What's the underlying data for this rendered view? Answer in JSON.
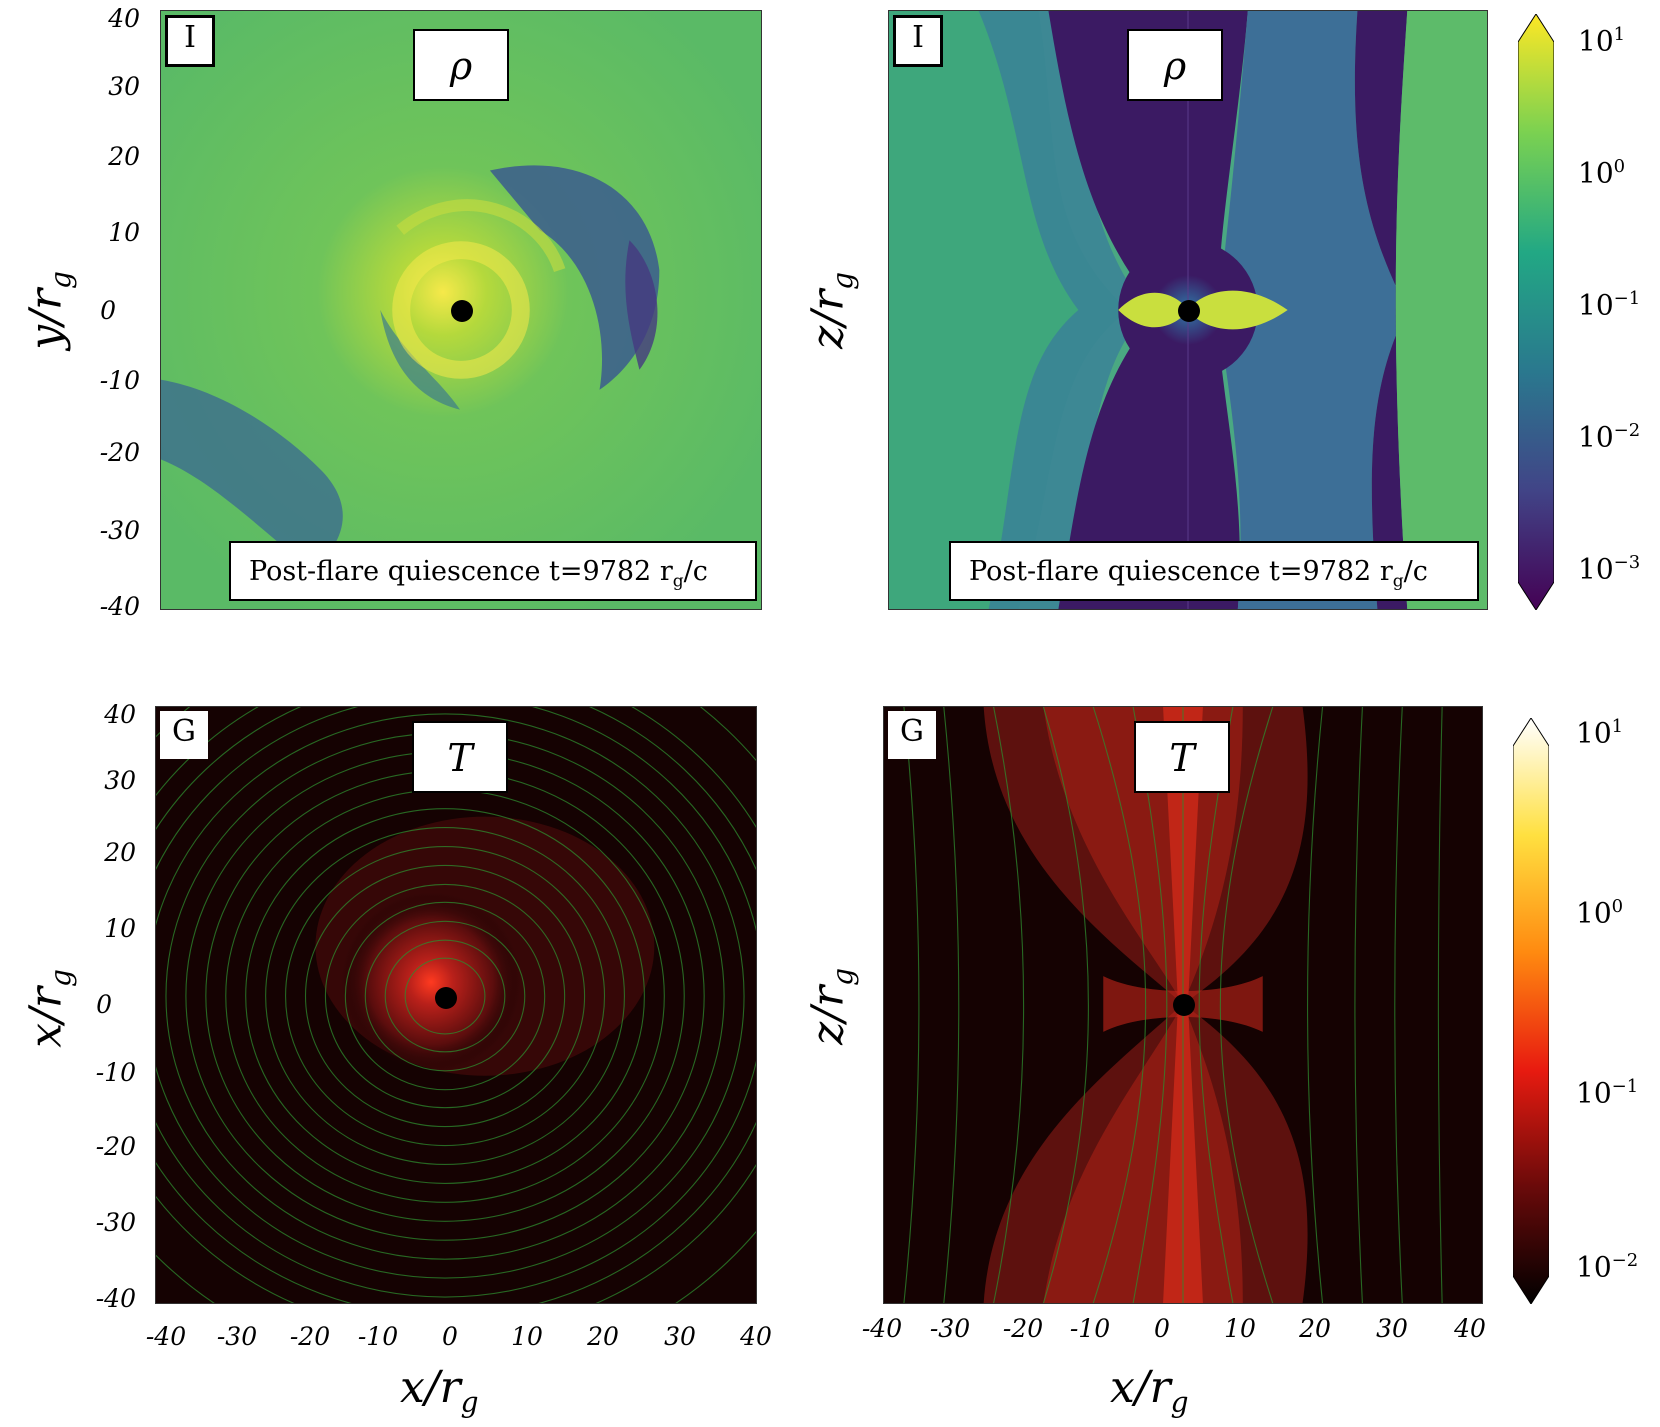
{
  "panels": {
    "top_left": {
      "tag": "I",
      "quantity": "ρ",
      "time_label": "Post-flare quiescence t=9782 r",
      "time_sub": "g",
      "time_suffix": "/c"
    },
    "top_right": {
      "tag": "I",
      "quantity": "ρ",
      "time_label": "Post-flare quiescence t=9782 r",
      "time_sub": "g",
      "time_suffix": "/c"
    },
    "bot_left": {
      "tag": "G",
      "quantity": "T"
    },
    "bot_right": {
      "tag": "G",
      "quantity": "T"
    }
  },
  "axes": {
    "top_left_ylabel": {
      "main": "y/r",
      "sub": "g"
    },
    "top_right_ylabel": {
      "main": "z/r",
      "sub": "g"
    },
    "bot_left_ylabel": {
      "main": "x/r",
      "sub": "g"
    },
    "bot_right_ylabel": {
      "main": "z/r",
      "sub": "g"
    },
    "bot_left_xlabel": {
      "main": "x/r",
      "sub": "g"
    },
    "bot_right_xlabel": {
      "main": "x/r",
      "sub": "g"
    }
  },
  "colorbars": {
    "density": {
      "colormap": "viridis",
      "scale": "log",
      "ticks": [
        {
          "base": "10",
          "exp": "1"
        },
        {
          "base": "10",
          "exp": "0"
        },
        {
          "base": "10",
          "exp": "−1"
        },
        {
          "base": "10",
          "exp": "−2"
        },
        {
          "base": "10",
          "exp": "−3"
        }
      ]
    },
    "temperature": {
      "colormap": "hot",
      "scale": "log",
      "ticks": [
        {
          "base": "10",
          "exp": "1"
        },
        {
          "base": "10",
          "exp": "0"
        },
        {
          "base": "10",
          "exp": "−1"
        },
        {
          "base": "10",
          "exp": "−2"
        }
      ]
    }
  },
  "chart_data": [
    {
      "type": "heatmap",
      "title": "ρ",
      "panel": "I",
      "xlabel": "",
      "ylabel": "y/r_g",
      "xlim": [
        -40,
        40
      ],
      "ylim": [
        -40,
        40
      ],
      "yticks": [
        "40",
        "30",
        "20",
        "10",
        "0",
        "-10",
        "-20",
        "-30",
        "-40"
      ],
      "annotation": "Post-flare quiescence t=9782 r_g/c",
      "colorbar": "log",
      "colorbar_range": [
        0.001,
        10
      ]
    },
    {
      "type": "heatmap",
      "title": "ρ",
      "panel": "I",
      "xlabel": "",
      "ylabel": "z/r_g",
      "xlim": [
        -40,
        40
      ],
      "ylim": [
        -40,
        40
      ],
      "annotation": "Post-flare quiescence t=9782 r_g/c",
      "colorbar": "log",
      "colorbar_range": [
        0.001,
        10
      ]
    },
    {
      "type": "heatmap",
      "title": "T",
      "panel": "G",
      "xlabel": "x/r_g",
      "ylabel": "x/r_g",
      "xlim": [
        -40,
        40
      ],
      "ylim": [
        -40,
        40
      ],
      "xticks": [
        "-40",
        "-30",
        "-20",
        "-10",
        "0",
        "10",
        "20",
        "30",
        "40"
      ],
      "yticks": [
        "40",
        "30",
        "20",
        "10",
        "0",
        "-10",
        "-20",
        "-30",
        "-40"
      ],
      "colorbar": "log",
      "colorbar_range": [
        0.01,
        10
      ]
    },
    {
      "type": "heatmap",
      "title": "T",
      "panel": "G",
      "xlabel": "x/r_g",
      "ylabel": "z/r_g",
      "xlim": [
        -40,
        40
      ],
      "ylim": [
        -40,
        40
      ],
      "xticks": [
        "-40",
        "-30",
        "-20",
        "-10",
        "0",
        "10",
        "20",
        "30",
        "40"
      ],
      "colorbar": "log",
      "colorbar_range": [
        0.01,
        10
      ]
    }
  ]
}
